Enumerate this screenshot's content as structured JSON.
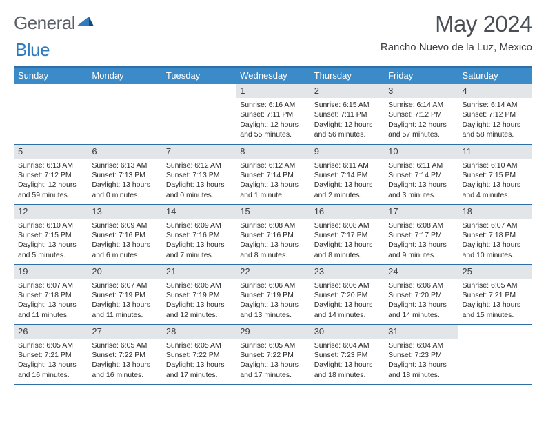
{
  "logo": {
    "text_general": "General",
    "text_blue": "Blue"
  },
  "title": "May 2024",
  "location": "Rancho Nuevo de la Luz, Mexico",
  "colors": {
    "header_bg": "#3b8bc9",
    "rule": "#2f6fa8",
    "daynum_bg": "#e3e6e8",
    "text": "#2b2b2b",
    "title": "#4a4f55"
  },
  "weekdays": [
    "Sunday",
    "Monday",
    "Tuesday",
    "Wednesday",
    "Thursday",
    "Friday",
    "Saturday"
  ],
  "weeks": [
    [
      {
        "empty": true
      },
      {
        "empty": true
      },
      {
        "empty": true
      },
      {
        "n": "1",
        "sr": "6:16 AM",
        "ss": "7:11 PM",
        "dl": "12 hours and 55 minutes."
      },
      {
        "n": "2",
        "sr": "6:15 AM",
        "ss": "7:11 PM",
        "dl": "12 hours and 56 minutes."
      },
      {
        "n": "3",
        "sr": "6:14 AM",
        "ss": "7:12 PM",
        "dl": "12 hours and 57 minutes."
      },
      {
        "n": "4",
        "sr": "6:14 AM",
        "ss": "7:12 PM",
        "dl": "12 hours and 58 minutes."
      }
    ],
    [
      {
        "n": "5",
        "sr": "6:13 AM",
        "ss": "7:12 PM",
        "dl": "12 hours and 59 minutes."
      },
      {
        "n": "6",
        "sr": "6:13 AM",
        "ss": "7:13 PM",
        "dl": "13 hours and 0 minutes."
      },
      {
        "n": "7",
        "sr": "6:12 AM",
        "ss": "7:13 PM",
        "dl": "13 hours and 0 minutes."
      },
      {
        "n": "8",
        "sr": "6:12 AM",
        "ss": "7:14 PM",
        "dl": "13 hours and 1 minute."
      },
      {
        "n": "9",
        "sr": "6:11 AM",
        "ss": "7:14 PM",
        "dl": "13 hours and 2 minutes."
      },
      {
        "n": "10",
        "sr": "6:11 AM",
        "ss": "7:14 PM",
        "dl": "13 hours and 3 minutes."
      },
      {
        "n": "11",
        "sr": "6:10 AM",
        "ss": "7:15 PM",
        "dl": "13 hours and 4 minutes."
      }
    ],
    [
      {
        "n": "12",
        "sr": "6:10 AM",
        "ss": "7:15 PM",
        "dl": "13 hours and 5 minutes."
      },
      {
        "n": "13",
        "sr": "6:09 AM",
        "ss": "7:16 PM",
        "dl": "13 hours and 6 minutes."
      },
      {
        "n": "14",
        "sr": "6:09 AM",
        "ss": "7:16 PM",
        "dl": "13 hours and 7 minutes."
      },
      {
        "n": "15",
        "sr": "6:08 AM",
        "ss": "7:16 PM",
        "dl": "13 hours and 8 minutes."
      },
      {
        "n": "16",
        "sr": "6:08 AM",
        "ss": "7:17 PM",
        "dl": "13 hours and 8 minutes."
      },
      {
        "n": "17",
        "sr": "6:08 AM",
        "ss": "7:17 PM",
        "dl": "13 hours and 9 minutes."
      },
      {
        "n": "18",
        "sr": "6:07 AM",
        "ss": "7:18 PM",
        "dl": "13 hours and 10 minutes."
      }
    ],
    [
      {
        "n": "19",
        "sr": "6:07 AM",
        "ss": "7:18 PM",
        "dl": "13 hours and 11 minutes."
      },
      {
        "n": "20",
        "sr": "6:07 AM",
        "ss": "7:19 PM",
        "dl": "13 hours and 11 minutes."
      },
      {
        "n": "21",
        "sr": "6:06 AM",
        "ss": "7:19 PM",
        "dl": "13 hours and 12 minutes."
      },
      {
        "n": "22",
        "sr": "6:06 AM",
        "ss": "7:19 PM",
        "dl": "13 hours and 13 minutes."
      },
      {
        "n": "23",
        "sr": "6:06 AM",
        "ss": "7:20 PM",
        "dl": "13 hours and 14 minutes."
      },
      {
        "n": "24",
        "sr": "6:06 AM",
        "ss": "7:20 PM",
        "dl": "13 hours and 14 minutes."
      },
      {
        "n": "25",
        "sr": "6:05 AM",
        "ss": "7:21 PM",
        "dl": "13 hours and 15 minutes."
      }
    ],
    [
      {
        "n": "26",
        "sr": "6:05 AM",
        "ss": "7:21 PM",
        "dl": "13 hours and 16 minutes."
      },
      {
        "n": "27",
        "sr": "6:05 AM",
        "ss": "7:22 PM",
        "dl": "13 hours and 16 minutes."
      },
      {
        "n": "28",
        "sr": "6:05 AM",
        "ss": "7:22 PM",
        "dl": "13 hours and 17 minutes."
      },
      {
        "n": "29",
        "sr": "6:05 AM",
        "ss": "7:22 PM",
        "dl": "13 hours and 17 minutes."
      },
      {
        "n": "30",
        "sr": "6:04 AM",
        "ss": "7:23 PM",
        "dl": "13 hours and 18 minutes."
      },
      {
        "n": "31",
        "sr": "6:04 AM",
        "ss": "7:23 PM",
        "dl": "13 hours and 18 minutes."
      },
      {
        "empty": true
      }
    ]
  ],
  "labels": {
    "sunrise": "Sunrise:",
    "sunset": "Sunset:",
    "daylight": "Daylight:"
  }
}
